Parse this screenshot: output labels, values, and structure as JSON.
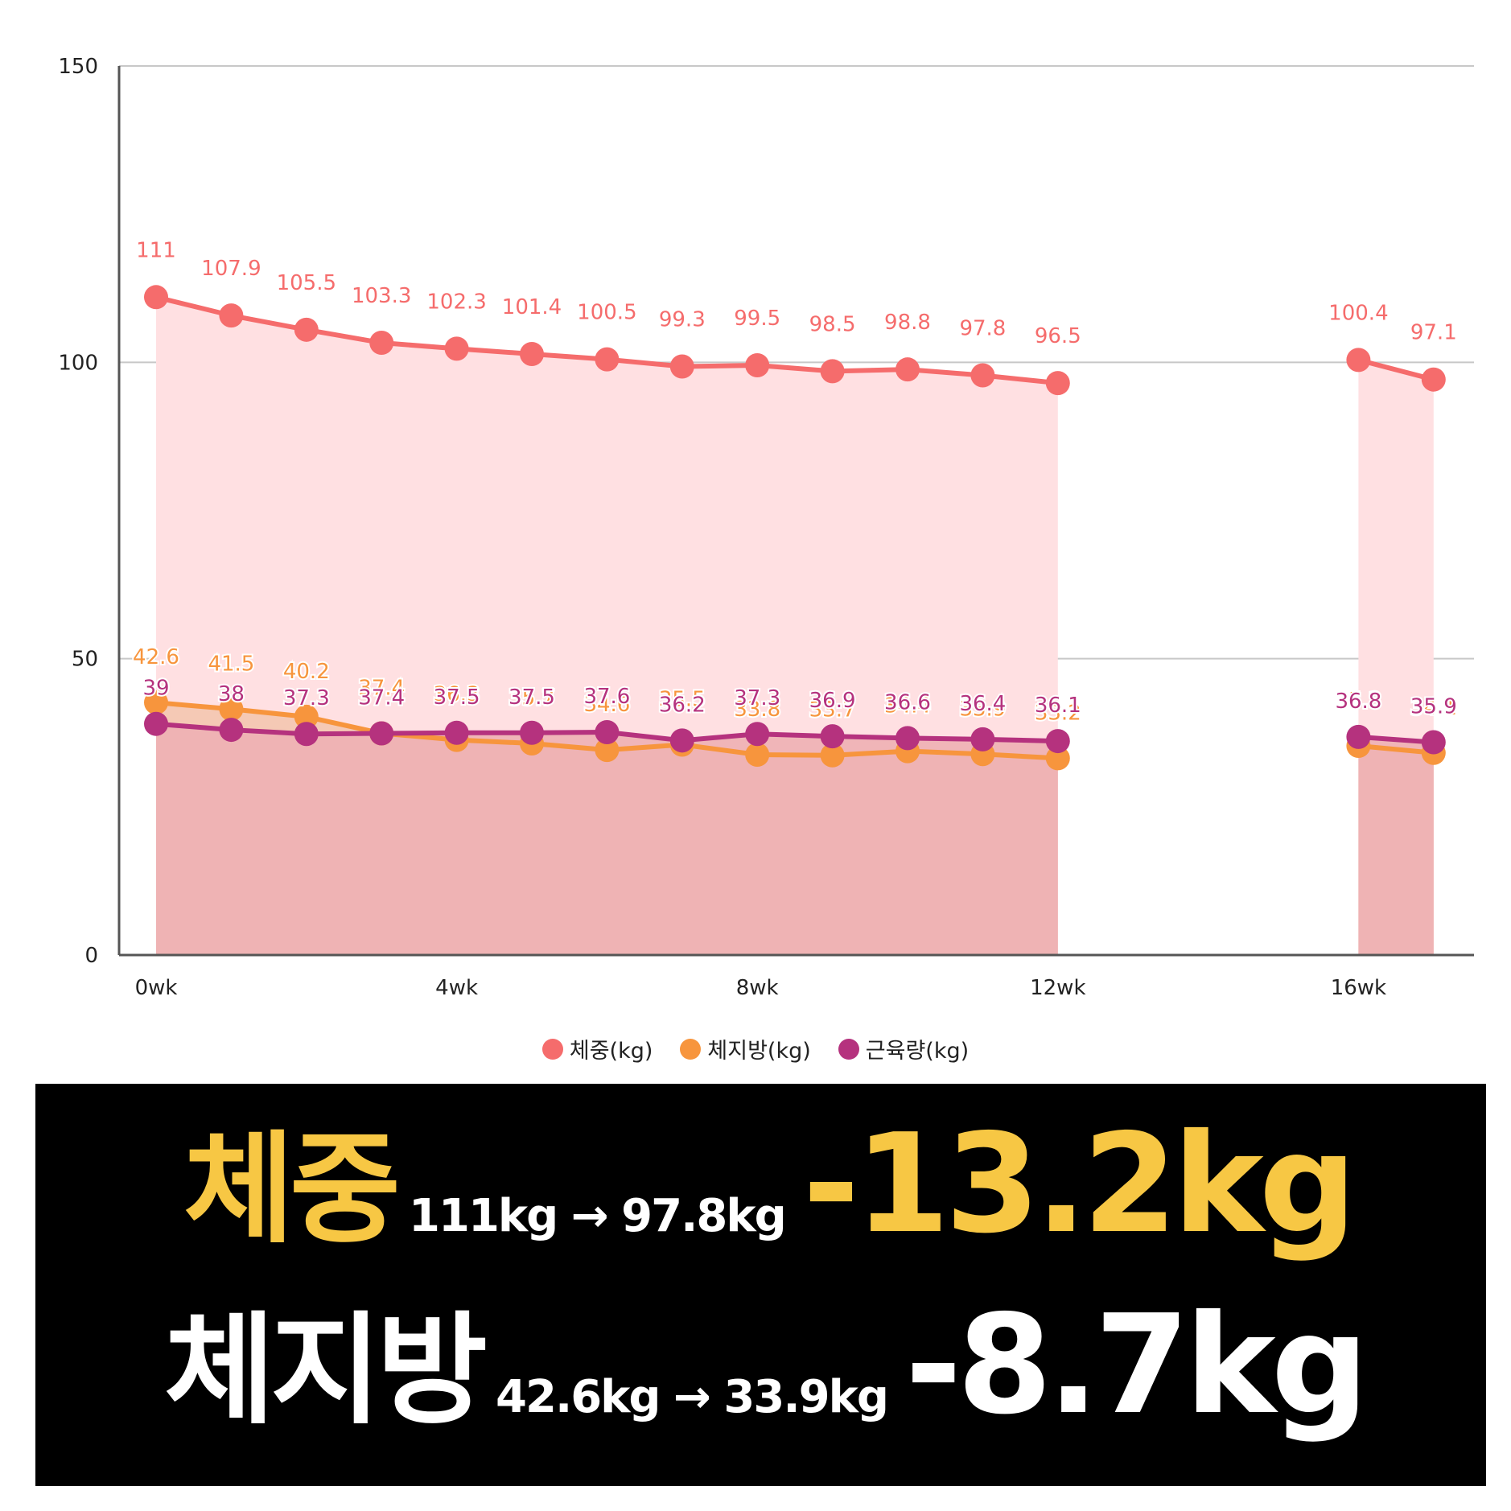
{
  "chart_data": {
    "type": "line",
    "x_ticks": [
      "0wk",
      "4wk",
      "8wk",
      "12wk",
      "16wk"
    ],
    "y_ticks": [
      "0",
      "50",
      "100",
      "150"
    ],
    "ylim": [
      0,
      150
    ],
    "xlim": [
      0,
      17
    ],
    "grid": true,
    "legend_position": "bottom",
    "series": [
      {
        "name": "체중(kg)",
        "color": "#f56c6c",
        "area_color": "#ffe0e2",
        "points": [
          {
            "x": 0,
            "y": 111,
            "label": "111"
          },
          {
            "x": 1,
            "y": 107.9,
            "label": "107.9"
          },
          {
            "x": 2,
            "y": 105.5,
            "label": "105.5"
          },
          {
            "x": 3,
            "y": 103.3,
            "label": "103.3"
          },
          {
            "x": 4,
            "y": 102.3,
            "label": "102.3"
          },
          {
            "x": 5,
            "y": 101.4,
            "label": "101.4"
          },
          {
            "x": 6,
            "y": 100.5,
            "label": "100.5"
          },
          {
            "x": 7,
            "y": 99.3,
            "label": "99.3"
          },
          {
            "x": 8,
            "y": 99.5,
            "label": "99.5"
          },
          {
            "x": 9,
            "y": 98.5,
            "label": "98.5"
          },
          {
            "x": 10,
            "y": 98.8,
            "label": "98.8"
          },
          {
            "x": 11,
            "y": 97.8,
            "label": "97.8"
          },
          {
            "x": 12,
            "y": 96.5,
            "label": "96.5"
          },
          {
            "x": 16,
            "y": 100.4,
            "label": "100.4"
          },
          {
            "x": 17,
            "y": 97.1,
            "label": "97.1"
          }
        ]
      },
      {
        "name": "체지방(kg)",
        "color": "#f7953d",
        "area_color": "#f4c6b0",
        "points": [
          {
            "x": 0,
            "y": 42.6,
            "label": "42.6"
          },
          {
            "x": 1,
            "y": 41.5,
            "label": "41.5"
          },
          {
            "x": 2,
            "y": 40.2,
            "label": "40.2"
          },
          {
            "x": 3,
            "y": 37.4,
            "label": "37.4"
          },
          {
            "x": 4,
            "y": 36.3,
            "label": "36.3"
          },
          {
            "x": 5,
            "y": 35.7,
            "label": "35.7"
          },
          {
            "x": 6,
            "y": 34.6,
            "label": "34.6"
          },
          {
            "x": 7,
            "y": 35.5,
            "label": "35.5"
          },
          {
            "x": 8,
            "y": 33.8,
            "label": "33.8"
          },
          {
            "x": 9,
            "y": 33.7,
            "label": "33.7"
          },
          {
            "x": 10,
            "y": 34.4,
            "label": "34.4"
          },
          {
            "x": 11,
            "y": 33.9,
            "label": "33.9"
          },
          {
            "x": 12,
            "y": 33.2,
            "label": "33.2"
          },
          {
            "x": 16,
            "y": 35.3,
            "label": "35.3"
          },
          {
            "x": 17,
            "y": 34.1,
            "label": "34.1"
          }
        ]
      },
      {
        "name": "근육량(kg)",
        "color": "#b5327e",
        "area_color": "#eeb0b4",
        "points": [
          {
            "x": 0,
            "y": 39,
            "label": "39"
          },
          {
            "x": 1,
            "y": 38,
            "label": "38"
          },
          {
            "x": 2,
            "y": 37.3,
            "label": "37.3"
          },
          {
            "x": 3,
            "y": 37.4,
            "label": "37.4"
          },
          {
            "x": 4,
            "y": 37.5,
            "label": "37.5"
          },
          {
            "x": 5,
            "y": 37.5,
            "label": "37.5"
          },
          {
            "x": 6,
            "y": 37.6,
            "label": "37.6"
          },
          {
            "x": 7,
            "y": 36.2,
            "label": "36.2"
          },
          {
            "x": 8,
            "y": 37.3,
            "label": "37.3"
          },
          {
            "x": 9,
            "y": 36.9,
            "label": "36.9"
          },
          {
            "x": 10,
            "y": 36.6,
            "label": "36.6"
          },
          {
            "x": 11,
            "y": 36.4,
            "label": "36.4"
          },
          {
            "x": 12,
            "y": 36.1,
            "label": "36.1"
          },
          {
            "x": 16,
            "y": 36.8,
            "label": "36.8"
          },
          {
            "x": 17,
            "y": 35.9,
            "label": "35.9"
          }
        ]
      }
    ]
  },
  "legend": {
    "weight": "체중(kg)",
    "fat": "체지방(kg)",
    "muscle": "근육량(kg)"
  },
  "summary": {
    "weight_label": "체중",
    "weight_range": "111kg → 97.8kg",
    "weight_delta": "-13.2kg",
    "fat_label": "체지방",
    "fat_range": "42.6kg → 33.9kg",
    "fat_delta": "-8.7kg",
    "accent_color": "#f7c744"
  }
}
